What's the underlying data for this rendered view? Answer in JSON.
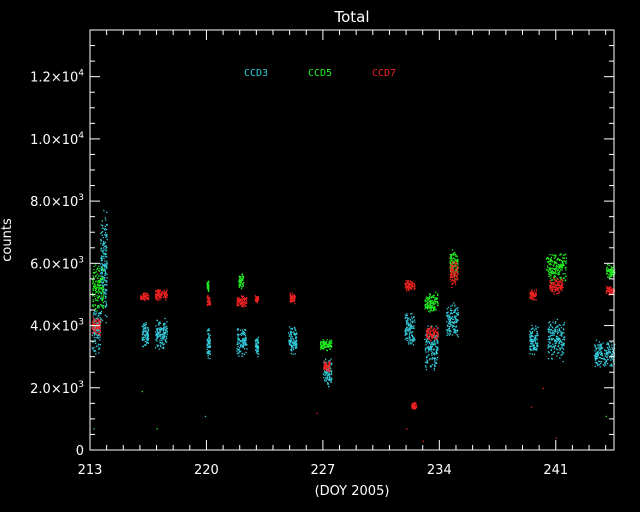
{
  "chart_data": {
    "type": "scatter",
    "title": "Total",
    "xlabel": "(DOY 2005)",
    "ylabel": "counts",
    "xlim": [
      213,
      244.5
    ],
    "ylim": [
      0,
      13500
    ],
    "x_ticks": [
      213,
      220,
      227,
      234,
      241
    ],
    "x_tick_labels": [
      "213",
      "220",
      "227",
      "234",
      "241"
    ],
    "y_ticks": [
      0,
      2000,
      4000,
      6000,
      8000,
      10000,
      12000
    ],
    "y_tick_labels": [
      {
        "mantissa": "0",
        "exp": ""
      },
      {
        "mantissa": "2.0×10",
        "exp": "3"
      },
      {
        "mantissa": "4.0×10",
        "exp": "3"
      },
      {
        "mantissa": "6.0×10",
        "exp": "3"
      },
      {
        "mantissa": "8.0×10",
        "exp": "3"
      },
      {
        "mantissa": "1.0×10",
        "exp": "4"
      },
      {
        "mantissa": "1.2×10",
        "exp": "4"
      }
    ],
    "grid": false,
    "legend_position": "top-center",
    "series": [
      {
        "name": "CCD3",
        "color": "#33ccdd",
        "clusters": [
          {
            "x": [
              213.1,
              213.6
            ],
            "y": [
              3000,
              4800
            ]
          },
          {
            "x": [
              213.6,
              214.0
            ],
            "y": [
              4000,
              7800
            ]
          },
          {
            "x": [
              216.1,
              216.5
            ],
            "y": [
              3300,
              4200
            ]
          },
          {
            "x": [
              216.9,
              217.6
            ],
            "y": [
              3200,
              4300
            ]
          },
          {
            "x": [
              220.0,
              220.2
            ],
            "y": [
              2900,
              4000
            ]
          },
          {
            "x": [
              221.8,
              222.4
            ],
            "y": [
              3000,
              4000
            ]
          },
          {
            "x": [
              222.9,
              223.1
            ],
            "y": [
              3000,
              3700
            ]
          },
          {
            "x": [
              224.9,
              225.4
            ],
            "y": [
              3000,
              4000
            ]
          },
          {
            "x": [
              227.0,
              227.5
            ],
            "y": [
              2000,
              3000
            ]
          },
          {
            "x": [
              231.9,
              232.5
            ],
            "y": [
              3300,
              4500
            ]
          },
          {
            "x": [
              233.1,
              233.9
            ],
            "y": [
              2500,
              4100
            ]
          },
          {
            "x": [
              234.4,
              235.1
            ],
            "y": [
              3600,
              4800
            ]
          },
          {
            "x": [
              239.4,
              239.9
            ],
            "y": [
              3000,
              4100
            ]
          },
          {
            "x": [
              240.5,
              241.5
            ],
            "y": [
              2800,
              4300
            ]
          },
          {
            "x": [
              243.3,
              244.5
            ],
            "y": [
              2600,
              3600
            ]
          }
        ]
      },
      {
        "name": "CCD5",
        "color": "#22ee22",
        "clusters": [
          {
            "x": [
              213.1,
              213.8
            ],
            "y": [
              4400,
              6000
            ]
          },
          {
            "x": [
              220.0,
              220.1
            ],
            "y": [
              5100,
              5500
            ]
          },
          {
            "x": [
              221.9,
              222.2
            ],
            "y": [
              5200,
              5700
            ]
          },
          {
            "x": [
              226.8,
              227.5
            ],
            "y": [
              3200,
              3600
            ]
          },
          {
            "x": [
              233.1,
              233.9
            ],
            "y": [
              4400,
              5100
            ]
          },
          {
            "x": [
              234.6,
              235.1
            ],
            "y": [
              5500,
              6500
            ]
          },
          {
            "x": [
              240.4,
              241.6
            ],
            "y": [
              5300,
              6400
            ]
          },
          {
            "x": [
              244.0,
              244.5
            ],
            "y": [
              5500,
              6000
            ]
          }
        ]
      },
      {
        "name": "CCD7",
        "color": "#ee2222",
        "clusters": [
          {
            "x": [
              213.1,
              213.6
            ],
            "y": [
              3700,
              4300
            ]
          },
          {
            "x": [
              216.0,
              216.5
            ],
            "y": [
              4800,
              5100
            ]
          },
          {
            "x": [
              216.9,
              217.6
            ],
            "y": [
              4800,
              5200
            ]
          },
          {
            "x": [
              220.0,
              220.2
            ],
            "y": [
              4600,
              5000
            ]
          },
          {
            "x": [
              221.8,
              222.4
            ],
            "y": [
              4600,
              5000
            ]
          },
          {
            "x": [
              222.9,
              223.1
            ],
            "y": [
              4700,
              5000
            ]
          },
          {
            "x": [
              225.0,
              225.3
            ],
            "y": [
              4700,
              5100
            ]
          },
          {
            "x": [
              227.0,
              227.4
            ],
            "y": [
              2500,
              2900
            ]
          },
          {
            "x": [
              231.9,
              232.5
            ],
            "y": [
              5100,
              5500
            ]
          },
          {
            "x": [
              232.3,
              232.6
            ],
            "y": [
              1300,
              1600
            ]
          },
          {
            "x": [
              233.2,
              233.9
            ],
            "y": [
              3500,
              4000
            ]
          },
          {
            "x": [
              234.6,
              235.1
            ],
            "y": [
              5200,
              6200
            ]
          },
          {
            "x": [
              239.4,
              239.8
            ],
            "y": [
              4800,
              5200
            ]
          },
          {
            "x": [
              240.6,
              241.4
            ],
            "y": [
              5000,
              5600
            ]
          },
          {
            "x": [
              244.0,
              244.5
            ],
            "y": [
              5000,
              5300
            ]
          }
        ]
      }
    ],
    "sparse_points": [
      {
        "series": "CCD3",
        "x": 213.2,
        "y": 700
      },
      {
        "series": "CCD3",
        "x": 219.9,
        "y": 1100
      },
      {
        "series": "CCD5",
        "x": 216.1,
        "y": 1900
      },
      {
        "series": "CCD5",
        "x": 217.0,
        "y": 700
      },
      {
        "series": "CCD7",
        "x": 226.6,
        "y": 1200
      },
      {
        "series": "CCD7",
        "x": 232.0,
        "y": 700
      },
      {
        "series": "CCD7",
        "x": 233.0,
        "y": 300
      },
      {
        "series": "CCD7",
        "x": 239.5,
        "y": 1400
      },
      {
        "series": "CCD7",
        "x": 240.2,
        "y": 2000
      },
      {
        "series": "CCD7",
        "x": 241.0,
        "y": 400
      },
      {
        "series": "CCD5",
        "x": 244.0,
        "y": 1100
      }
    ]
  }
}
